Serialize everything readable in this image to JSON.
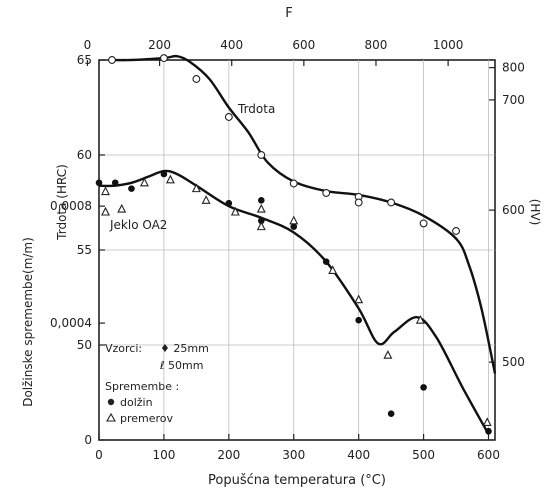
{
  "chart_data": {
    "type": "line",
    "title": "",
    "subtitle": "Jeklo OA2",
    "xlabel": "Popušćna temperatura (°C)",
    "xlim": [
      0,
      610
    ],
    "x_ticks": [
      0,
      100,
      200,
      300,
      400,
      500,
      600
    ],
    "top_axis": {
      "label": "F",
      "ticks": [
        "0",
        "200",
        "400",
        "600",
        "800",
        "1000"
      ],
      "tick_values_F": [
        0,
        200,
        400,
        600,
        800,
        1000
      ]
    },
    "hardness_axis": {
      "label": "Trdota (HRC)",
      "range": [
        45,
        65
      ],
      "ticks": [
        50,
        55,
        60,
        65
      ]
    },
    "hv_axis": {
      "label": "(HV)",
      "ticks": [
        500,
        600,
        700,
        800
      ],
      "tick_hrc": [
        49.1,
        57.1,
        62.9,
        64.6
      ]
    },
    "strain_axis": {
      "label": "Dolžinske spremembe(m/m)",
      "range": [
        0,
        0.0013
      ],
      "ticks": [
        0,
        0.0004,
        0.0008
      ],
      "tick_labels": [
        "0",
        "0,0004",
        "0,0008"
      ]
    },
    "curve_label": "Trdota",
    "hardness_series": {
      "curve": [
        [
          20,
          65
        ],
        [
          50,
          65
        ],
        [
          100,
          65.1
        ],
        [
          120,
          65.2
        ],
        [
          140,
          64.9
        ],
        [
          170,
          64
        ],
        [
          200,
          62.5
        ],
        [
          230,
          61.2
        ],
        [
          260,
          59.6
        ],
        [
          300,
          58.6
        ],
        [
          350,
          58.1
        ],
        [
          400,
          57.9
        ],
        [
          450,
          57.5
        ],
        [
          500,
          56.8
        ],
        [
          550,
          55.6
        ],
        [
          570,
          54.2
        ],
        [
          590,
          51.8
        ],
        [
          610,
          48.5
        ]
      ],
      "points": [
        [
          20,
          65
        ],
        [
          100,
          65.1
        ],
        [
          150,
          64
        ],
        [
          200,
          62
        ],
        [
          250,
          60
        ],
        [
          300,
          58.5
        ],
        [
          350,
          58
        ],
        [
          400,
          57.8
        ],
        [
          400,
          57.5
        ],
        [
          450,
          57.5
        ],
        [
          500,
          56.4
        ],
        [
          550,
          56
        ]
      ]
    },
    "dimension_series": {
      "curve": [
        [
          0,
          0.00087
        ],
        [
          25,
          0.00087
        ],
        [
          50,
          0.00088
        ],
        [
          75,
          0.0009
        ],
        [
          100,
          0.00092
        ],
        [
          120,
          0.00091
        ],
        [
          150,
          0.00087
        ],
        [
          200,
          0.0008
        ],
        [
          250,
          0.00076
        ],
        [
          300,
          0.00071
        ],
        [
          350,
          0.00061
        ],
        [
          400,
          0.00045
        ],
        [
          430,
          0.00033
        ],
        [
          455,
          0.00037
        ],
        [
          490,
          0.00042
        ],
        [
          520,
          0.00035
        ],
        [
          560,
          0.00018
        ],
        [
          600,
          2e-05
        ]
      ],
      "samples_legend_title": "Vzorci:",
      "samples_legend": [
        "♦ 25mm",
        "ℓ 50mm"
      ],
      "changes_legend_title": "Spremembe :",
      "changes_legend": [
        {
          "marker": "dot",
          "label": "dolžin"
        },
        {
          "marker": "triangle",
          "label": "premerov"
        }
      ],
      "length_points": [
        [
          0,
          0.00088
        ],
        [
          25,
          0.00088
        ],
        [
          50,
          0.00086
        ],
        [
          100,
          0.00091
        ],
        [
          200,
          0.00081
        ],
        [
          250,
          0.00082
        ],
        [
          250,
          0.00075
        ],
        [
          300,
          0.00073
        ],
        [
          350,
          0.00061
        ],
        [
          400,
          0.00041
        ],
        [
          450,
          9e-05
        ],
        [
          500,
          0.00018
        ],
        [
          600,
          3e-05
        ]
      ],
      "diameter_points": [
        [
          10,
          0.00085
        ],
        [
          10,
          0.00078
        ],
        [
          35,
          0.00079
        ],
        [
          70,
          0.00088
        ],
        [
          110,
          0.00089
        ],
        [
          150,
          0.00086
        ],
        [
          165,
          0.00082
        ],
        [
          210,
          0.00078
        ],
        [
          250,
          0.00079
        ],
        [
          250,
          0.00073
        ],
        [
          300,
          0.00075
        ],
        [
          360,
          0.00058
        ],
        [
          400,
          0.00048
        ],
        [
          445,
          0.00029
        ],
        [
          495,
          0.00041
        ],
        [
          598,
          6e-05
        ]
      ]
    }
  }
}
